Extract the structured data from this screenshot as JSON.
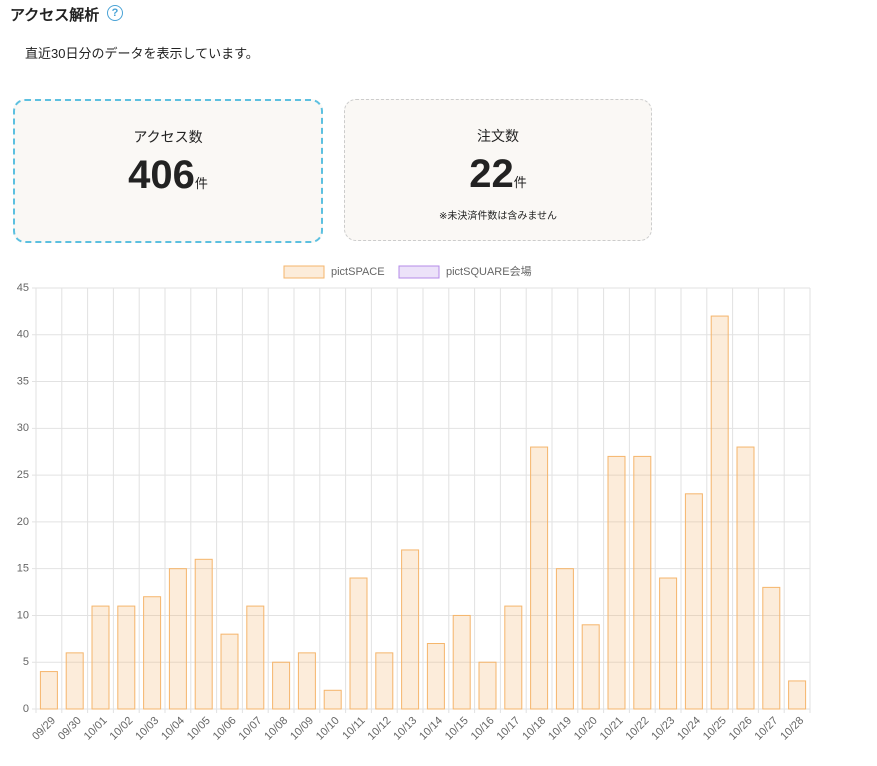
{
  "header": {
    "title": "アクセス解析",
    "help_icon": "?"
  },
  "description": "直近30日分のデータを表示しています。",
  "cards": [
    {
      "label": "アクセス数",
      "value": 406,
      "unit": "件"
    },
    {
      "label": "注文数",
      "value": 22,
      "unit": "件",
      "note": "※未決済件数は含みません"
    }
  ],
  "chart_data": {
    "type": "bar",
    "categories": [
      "09/29",
      "09/30",
      "10/01",
      "10/02",
      "10/03",
      "10/04",
      "10/05",
      "10/06",
      "10/07",
      "10/08",
      "10/09",
      "10/10",
      "10/11",
      "10/12",
      "10/13",
      "10/14",
      "10/15",
      "10/16",
      "10/17",
      "10/18",
      "10/19",
      "10/20",
      "10/21",
      "10/22",
      "10/23",
      "10/24",
      "10/25",
      "10/26",
      "10/27",
      "10/28"
    ],
    "series": [
      {
        "name": "pictSPACE",
        "color": "#f5b56b",
        "values": [
          4,
          6,
          11,
          11,
          12,
          15,
          16,
          8,
          11,
          5,
          6,
          2,
          14,
          6,
          17,
          7,
          10,
          5,
          11,
          28,
          15,
          9,
          27,
          27,
          14,
          23,
          42,
          28,
          13,
          3
        ]
      },
      {
        "name": "pictSQUARE会場",
        "color": "#b48be8",
        "values": [
          0,
          0,
          0,
          0,
          0,
          0,
          0,
          0,
          0,
          0,
          0,
          0,
          0,
          0,
          0,
          0,
          0,
          0,
          0,
          0,
          0,
          0,
          0,
          0,
          0,
          0,
          0,
          0,
          0,
          0
        ]
      }
    ],
    "ylim": [
      0,
      45
    ],
    "yticks": [
      0,
      5,
      10,
      15,
      20,
      25,
      30,
      35,
      40,
      45
    ],
    "grid": true,
    "legend": "top"
  }
}
